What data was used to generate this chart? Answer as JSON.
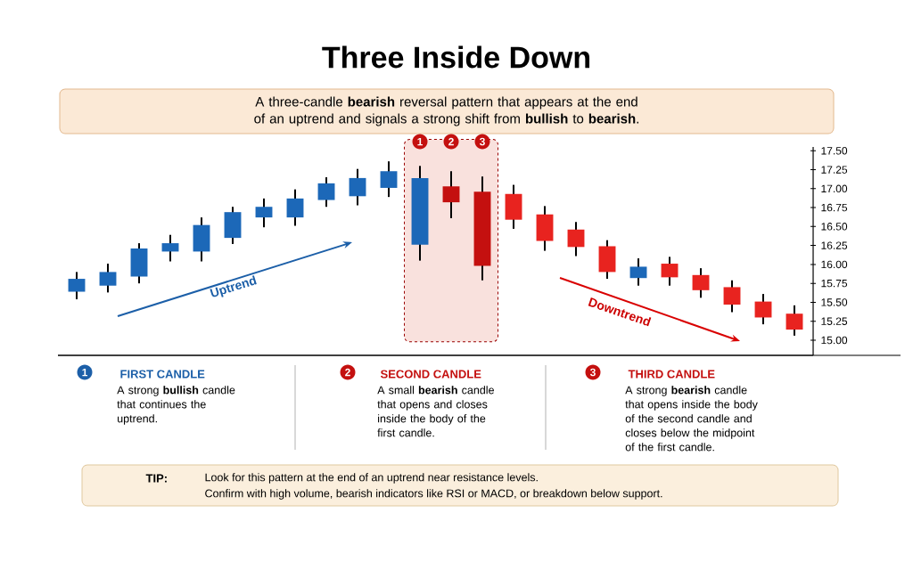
{
  "chart_data": {
    "type": "candlestick",
    "title": "Three Inside Down",
    "subtitle": "A three-candle **bearish** reversal pattern that appears at the end of an uptrend and signals a strong shift from **bullish** to **bearish**.",
    "categories": [
      null,
      null,
      null,
      null,
      null,
      null,
      null,
      null,
      null,
      null,
      null,
      null,
      null,
      null,
      null,
      null,
      null,
      null,
      null,
      null,
      null,
      null,
      null,
      null
    ],
    "ohlc": [
      [
        15.64,
        15.9,
        15.54,
        15.81
      ],
      [
        15.72,
        16.01,
        15.63,
        15.9
      ],
      [
        15.84,
        16.28,
        15.75,
        16.21
      ],
      [
        16.17,
        16.39,
        16.04,
        16.28
      ],
      [
        16.17,
        16.62,
        16.04,
        16.52
      ],
      [
        16.35,
        16.76,
        16.27,
        16.69
      ],
      [
        16.62,
        16.87,
        16.49,
        16.76
      ],
      [
        16.62,
        16.99,
        16.51,
        16.87
      ],
      [
        16.85,
        17.15,
        16.76,
        17.07
      ],
      [
        16.9,
        17.26,
        16.78,
        17.14
      ],
      [
        17.01,
        17.36,
        16.89,
        17.23
      ],
      [
        16.26,
        17.3,
        16.05,
        17.14
      ],
      [
        17.03,
        17.23,
        16.61,
        16.82
      ],
      [
        16.96,
        17.16,
        15.79,
        15.98
      ],
      [
        16.93,
        17.05,
        16.47,
        16.59
      ],
      [
        16.66,
        16.77,
        16.18,
        16.31
      ],
      [
        16.46,
        16.56,
        16.11,
        16.23
      ],
      [
        16.24,
        16.32,
        15.81,
        15.9
      ],
      [
        15.82,
        16.08,
        15.72,
        15.97
      ],
      [
        16.01,
        16.1,
        15.72,
        15.83
      ],
      [
        15.86,
        15.95,
        15.56,
        15.66
      ],
      [
        15.7,
        15.79,
        15.37,
        15.47
      ],
      [
        15.51,
        15.61,
        15.21,
        15.3
      ],
      [
        15.35,
        15.46,
        15.06,
        15.14
      ]
    ],
    "colors": [
      "#1c68b8",
      "#1c68b8",
      "#1c68b8",
      "#1c68b8",
      "#1c68b8",
      "#1c68b8",
      "#1c68b8",
      "#1c68b8",
      "#1c68b8",
      "#1c68b8",
      "#1c68b8",
      "#1c68b8",
      "#c4100f",
      "#c4100f",
      "#e8231f",
      "#e8231f",
      "#e8231f",
      "#e8231f",
      "#1c68b8",
      "#e8231f",
      "#e8231f",
      "#e8231f",
      "#e8231f",
      "#e8231f"
    ],
    "ylim": [
      14.8,
      17.55
    ],
    "yticks": [
      {
        "value": 15,
        "label": "15.00"
      },
      {
        "value": 15.25,
        "label": "15.25"
      },
      {
        "value": 15.5,
        "label": "15.50"
      },
      {
        "value": 15.75,
        "label": "15.75"
      },
      {
        "value": 16,
        "label": "16.00"
      },
      {
        "value": 16.25,
        "label": "16.25"
      },
      {
        "value": 16.5,
        "label": "16.50"
      },
      {
        "value": 16.75,
        "label": "16.75"
      },
      {
        "value": 17,
        "label": "17.00"
      },
      {
        "value": 17.25,
        "label": "17.25"
      },
      {
        "value": 17.5,
        "label": "17.50"
      }
    ],
    "tick_labels": "y",
    "annotations": [
      "1",
      "2",
      "3",
      "Uptrend",
      "Downtrend",
      "1",
      "2",
      "3",
      "FIRST CANDLE",
      "SECOND CANDLE",
      "THIRD CANDLE",
      "A strong **bullish** candle that continues the uptrend.",
      "A small **bearish** candle that opens and closes inside the body of the first candle.",
      "A strong **bearish** candle that opens inside the body of the second candle and closes below the midpoint of the first candle.",
      "TIP:",
      "Look for this pattern at the end of an uptrend near resistance levels.",
      "Confirm with high volume, bearish indicators like RSI or MACD, or breakdown below support."
    ]
  }
}
